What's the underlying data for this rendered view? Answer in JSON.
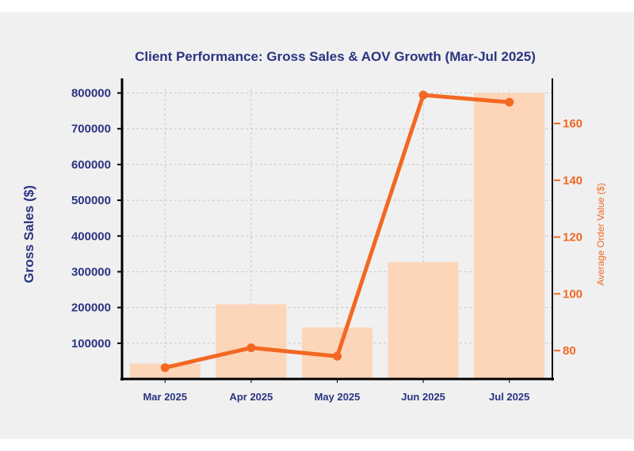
{
  "chart_data": {
    "type": "bar+line",
    "title": "Client Performance: Gross Sales & AOV Growth (Mar-Jul 2025)",
    "categories": [
      "Mar 2025",
      "Apr 2025",
      "May 2025",
      "Jun 2025",
      "Jul 2025"
    ],
    "series": [
      {
        "name": "Gross Sales ($)",
        "type": "bar",
        "axis": "left",
        "values": [
          43000,
          209000,
          144000,
          327000,
          800000
        ]
      },
      {
        "name": "Average Order Value ($)",
        "type": "line",
        "axis": "right",
        "values": [
          74,
          81,
          78,
          170,
          167.5
        ]
      }
    ],
    "ylabel_left": "Gross Sales ($)",
    "ylabel_right": "Average Order Value ($)",
    "ylim_left": [
      0,
      810000
    ],
    "yticks_left": [
      100000,
      200000,
      300000,
      400000,
      500000,
      600000,
      700000,
      800000
    ],
    "ylim_right": [
      70,
      172
    ],
    "yticks_right": [
      80,
      100,
      120,
      140,
      160
    ],
    "grid": true,
    "colors": {
      "title": "#2b3481",
      "left_axis": "#2b3481",
      "right_axis": "#f26822",
      "bar": "#fdd5b9",
      "line": "#f26822",
      "grid": "#c8c8c8",
      "background": "#f0f0f0",
      "axis_line": "#000000"
    }
  }
}
